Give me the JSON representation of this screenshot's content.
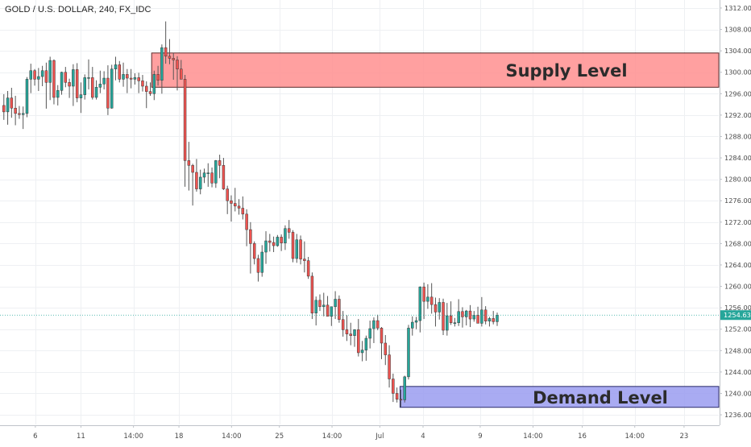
{
  "symbol_label": "GOLD / U.S. DOLLAR, 240, FX_IDC",
  "colors": {
    "background": "#ffffff",
    "grid": "#eef0f3",
    "up": "#26a69a",
    "down": "#ef5350",
    "wick": "#555555",
    "supply_fill": "#ff8f8f",
    "supply_border": "#5a2a2a",
    "demand_fill": "#9a9cf0",
    "demand_border": "#2a2a6a",
    "price_line": "#26a69a",
    "price_badge": "#26a69a",
    "axis_text": "#4a4a4a",
    "zone_text": "#2b2b2b"
  },
  "chart_data": {
    "type": "candlestick",
    "title": "GOLD / U.S. DOLLAR, 240, FX_IDC",
    "grid": true,
    "y_ticks": [
      "1236.00",
      "1240.00",
      "1244.00",
      "1248.00",
      "1252.00",
      "1256.00",
      "1260.00",
      "1264.00",
      "1268.00",
      "1272.00",
      "1276.00",
      "1280.00",
      "1284.00",
      "1288.00",
      "1292.00",
      "1296.00",
      "1300.00",
      "1304.00",
      "1308.00",
      "1312.00"
    ],
    "ylim": [
      1234.2,
      1313.5
    ],
    "x_ticks": [
      "6",
      "11",
      "14:00",
      "18",
      "14:00",
      "25",
      "14:00",
      "Jul",
      "4",
      "9",
      "14:00",
      "16",
      "14:00",
      "23"
    ],
    "x_tick_positions": [
      8.17,
      20.0,
      33.63,
      45.43,
      59.08,
      71.49,
      85.15,
      97.56,
      108.77,
      123.6,
      137.3,
      150.07,
      163.7,
      176.49
    ],
    "xlim": [
      -1,
      185.5
    ],
    "last_price": 1254.63,
    "last_price_label": "1254.63",
    "zones": [
      {
        "name": "supply",
        "label": "Supply Level",
        "y_low": 1297.2,
        "y_high": 1303.6,
        "x_start": 38.35,
        "x_end": 185.5
      },
      {
        "name": "demand",
        "label": "Demand Level",
        "y_low": 1237.4,
        "y_high": 1241.3,
        "x_start": 102.8,
        "x_end": 185.5
      }
    ],
    "ohlc": [
      [
        1293.8,
        1295.9,
        1291.1,
        1292.6
      ],
      [
        1292.6,
        1296.5,
        1290.2,
        1295.2
      ],
      [
        1295.2,
        1297.1,
        1291.5,
        1293.3
      ],
      [
        1293.3,
        1295.6,
        1290.1,
        1292.3
      ],
      [
        1292.3,
        1293.7,
        1291.3,
        1292.1
      ],
      [
        1292.1,
        1293.6,
        1289.4,
        1292.3
      ],
      [
        1292.3,
        1299.1,
        1291.6,
        1298.7
      ],
      [
        1298.7,
        1301.6,
        1296.1,
        1300.3
      ],
      [
        1300.3,
        1300.6,
        1297.5,
        1298.7
      ],
      [
        1298.7,
        1300.8,
        1296.5,
        1299.2
      ],
      [
        1299.2,
        1301.2,
        1297.4,
        1300.3
      ],
      [
        1300.3,
        1301.8,
        1293.2,
        1298.1
      ],
      [
        1298.1,
        1302.9,
        1294.8,
        1302.2
      ],
      [
        1302.2,
        1302.4,
        1294.0,
        1295.3
      ],
      [
        1295.3,
        1297.6,
        1293.8,
        1296.6
      ],
      [
        1296.6,
        1300.1,
        1295.8,
        1300.0
      ],
      [
        1300.0,
        1301.0,
        1297.2,
        1298.1
      ],
      [
        1298.1,
        1298.8,
        1295.2,
        1297.4
      ],
      [
        1297.4,
        1301.5,
        1293.7,
        1300.5
      ],
      [
        1300.5,
        1301.7,
        1294.4,
        1295.2
      ],
      [
        1295.2,
        1298.1,
        1292.4,
        1295.8
      ],
      [
        1295.8,
        1299.6,
        1294.9,
        1299.0
      ],
      [
        1299.0,
        1302.4,
        1296.8,
        1299.0
      ],
      [
        1299.0,
        1301.0,
        1294.9,
        1295.3
      ],
      [
        1295.3,
        1298.5,
        1294.9,
        1297.2
      ],
      [
        1297.2,
        1300.3,
        1296.1,
        1297.8
      ],
      [
        1297.8,
        1300.2,
        1296.8,
        1298.9
      ],
      [
        1298.9,
        1301.3,
        1292.0,
        1293.3
      ],
      [
        1293.3,
        1301.4,
        1293.2,
        1300.6
      ],
      [
        1300.6,
        1302.9,
        1298.5,
        1301.4
      ],
      [
        1301.4,
        1302.1,
        1298.1,
        1298.7
      ],
      [
        1298.7,
        1301.8,
        1297.3,
        1299.6
      ],
      [
        1299.6,
        1300.6,
        1296.1,
        1298.9
      ],
      [
        1298.9,
        1300.6,
        1297.0,
        1298.7
      ],
      [
        1298.7,
        1299.8,
        1297.7,
        1299.0
      ],
      [
        1299.0,
        1299.9,
        1296.1,
        1298.4
      ],
      [
        1298.4,
        1299.5,
        1296.4,
        1297.4
      ],
      [
        1297.4,
        1298.3,
        1293.3,
        1296.4
      ],
      [
        1296.4,
        1298.1,
        1295.6,
        1296.0
      ],
      [
        1296.0,
        1300.3,
        1294.8,
        1299.6
      ],
      [
        1299.6,
        1301.2,
        1297.5,
        1298.5
      ],
      [
        1298.5,
        1305.2,
        1296.0,
        1304.6
      ],
      [
        1304.6,
        1309.5,
        1301.6,
        1303.0
      ],
      [
        1303.0,
        1306.2,
        1301.5,
        1302.6
      ],
      [
        1302.6,
        1303.6,
        1298.6,
        1302.3
      ],
      [
        1302.3,
        1303.0,
        1296.6,
        1300.6
      ],
      [
        1300.6,
        1302.3,
        1298.8,
        1298.7
      ],
      [
        1298.7,
        1299.5,
        1278.6,
        1283.5
      ],
      [
        1283.5,
        1287.0,
        1277.9,
        1282.6
      ],
      [
        1282.6,
        1282.9,
        1275.1,
        1281.3
      ],
      [
        1281.3,
        1283.8,
        1277.7,
        1278.2
      ],
      [
        1278.2,
        1281.8,
        1277.2,
        1280.4
      ],
      [
        1280.4,
        1282.0,
        1279.3,
        1281.2
      ],
      [
        1281.2,
        1283.0,
        1278.6,
        1281.2
      ],
      [
        1281.2,
        1282.2,
        1278.5,
        1279.3
      ],
      [
        1279.3,
        1283.6,
        1278.4,
        1283.5
      ],
      [
        1283.5,
        1284.6,
        1280.2,
        1282.6
      ],
      [
        1282.6,
        1284.0,
        1278.0,
        1278.2
      ],
      [
        1278.2,
        1278.8,
        1273.5,
        1276.0
      ],
      [
        1276.0,
        1277.0,
        1272.1,
        1275.5
      ],
      [
        1275.5,
        1278.4,
        1274.0,
        1275.0
      ],
      [
        1275.0,
        1276.3,
        1273.4,
        1274.6
      ],
      [
        1274.6,
        1276.8,
        1272.5,
        1273.5
      ],
      [
        1273.5,
        1274.4,
        1267.5,
        1270.6
      ],
      [
        1270.6,
        1272.0,
        1262.4,
        1268.0
      ],
      [
        1268.0,
        1268.4,
        1264.1,
        1265.2
      ],
      [
        1265.2,
        1265.9,
        1260.9,
        1262.6
      ],
      [
        1262.6,
        1267.7,
        1261.8,
        1266.4
      ],
      [
        1266.4,
        1270.3,
        1264.2,
        1268.5
      ],
      [
        1268.5,
        1269.8,
        1266.5,
        1268.2
      ],
      [
        1268.2,
        1269.3,
        1266.4,
        1267.6
      ],
      [
        1267.6,
        1269.6,
        1267.4,
        1269.2
      ],
      [
        1269.2,
        1269.7,
        1266.6,
        1268.1
      ],
      [
        1268.1,
        1271.4,
        1266.8,
        1270.8
      ],
      [
        1270.8,
        1272.4,
        1268.9,
        1270.1
      ],
      [
        1270.1,
        1270.5,
        1264.5,
        1265.2
      ],
      [
        1265.2,
        1269.8,
        1264.4,
        1268.7
      ],
      [
        1268.7,
        1269.5,
        1264.1,
        1265.1
      ],
      [
        1265.1,
        1268.4,
        1262.6,
        1264.8
      ],
      [
        1264.8,
        1265.5,
        1261.4,
        1261.9
      ],
      [
        1261.9,
        1262.6,
        1253.9,
        1255.0
      ],
      [
        1255.0,
        1258.1,
        1252.7,
        1257.4
      ],
      [
        1257.4,
        1258.5,
        1255.4,
        1256.2
      ],
      [
        1256.2,
        1258.8,
        1254.4,
        1256.5
      ],
      [
        1256.5,
        1258.2,
        1254.4,
        1254.4
      ],
      [
        1254.4,
        1256.2,
        1252.6,
        1256.2
      ],
      [
        1256.2,
        1259.1,
        1253.9,
        1257.6
      ],
      [
        1257.6,
        1258.3,
        1253.2,
        1253.8
      ],
      [
        1253.8,
        1255.4,
        1250.6,
        1251.9
      ],
      [
        1251.9,
        1254.6,
        1249.8,
        1251.1
      ],
      [
        1251.1,
        1253.2,
        1249.0,
        1250.8
      ],
      [
        1250.8,
        1252.0,
        1248.7,
        1251.9
      ],
      [
        1251.9,
        1253.9,
        1246.9,
        1247.6
      ],
      [
        1247.6,
        1249.8,
        1246.0,
        1248.1
      ],
      [
        1248.1,
        1250.8,
        1246.1,
        1250.3
      ],
      [
        1250.3,
        1253.6,
        1248.4,
        1252.1
      ],
      [
        1252.1,
        1254.2,
        1249.4,
        1253.6
      ],
      [
        1253.6,
        1254.7,
        1251.8,
        1252.2
      ],
      [
        1252.2,
        1252.4,
        1246.4,
        1249.4
      ],
      [
        1249.4,
        1250.9,
        1245.3,
        1247.2
      ],
      [
        1247.2,
        1249.0,
        1241.1,
        1242.7
      ],
      [
        1242.7,
        1243.7,
        1238.4,
        1240.0
      ],
      [
        1240.0,
        1241.1,
        1238.3,
        1238.9
      ],
      [
        1238.9,
        1240.7,
        1237.5,
        1238.8
      ],
      [
        1238.8,
        1243.3,
        1238.3,
        1243.1
      ],
      [
        1243.1,
        1252.8,
        1242.6,
        1252.2
      ],
      [
        1252.2,
        1254.4,
        1250.8,
        1253.3
      ],
      [
        1253.3,
        1254.3,
        1252.0,
        1253.6
      ],
      [
        1253.6,
        1260.0,
        1251.4,
        1259.9
      ],
      [
        1259.9,
        1260.7,
        1253.9,
        1257.2
      ],
      [
        1257.2,
        1260.4,
        1255.8,
        1258.0
      ],
      [
        1258.0,
        1260.6,
        1254.9,
        1256.6
      ],
      [
        1256.6,
        1257.9,
        1252.5,
        1255.2
      ],
      [
        1255.2,
        1257.8,
        1253.8,
        1257.0
      ],
      [
        1257.0,
        1257.7,
        1250.9,
        1251.8
      ],
      [
        1251.8,
        1256.9,
        1250.8,
        1254.5
      ],
      [
        1254.5,
        1257.2,
        1252.8,
        1253.2
      ],
      [
        1253.2,
        1254.1,
        1252.5,
        1253.2
      ],
      [
        1253.2,
        1257.6,
        1252.6,
        1255.3
      ],
      [
        1255.3,
        1256.1,
        1252.3,
        1254.3
      ],
      [
        1254.3,
        1255.6,
        1252.7,
        1255.4
      ],
      [
        1255.4,
        1256.5,
        1252.4,
        1253.9
      ],
      [
        1253.9,
        1255.4,
        1253.4,
        1254.6
      ],
      [
        1254.6,
        1256.2,
        1253.4,
        1253.1
      ],
      [
        1253.1,
        1258.0,
        1252.5,
        1255.6
      ],
      [
        1255.6,
        1256.3,
        1252.9,
        1253.5
      ],
      [
        1253.5,
        1254.3,
        1252.5,
        1254.0
      ],
      [
        1254.0,
        1255.4,
        1252.9,
        1253.4
      ],
      [
        1253.4,
        1255.1,
        1252.6,
        1254.6
      ]
    ]
  }
}
